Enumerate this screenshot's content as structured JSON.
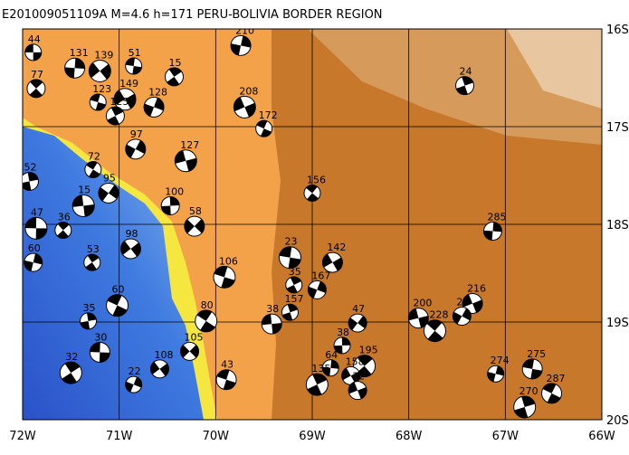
{
  "title": "E201009051109A M=4.6 h=171 PERU-BOLIVIA BORDER REGION",
  "xlim": [
    -72,
    -66
  ],
  "ylim": [
    -20,
    -16
  ],
  "xticks": [
    {
      "value": -72,
      "label": "72W"
    },
    {
      "value": -71,
      "label": "71W"
    },
    {
      "value": -70,
      "label": "70W"
    },
    {
      "value": -69,
      "label": "69W"
    },
    {
      "value": -68,
      "label": "68W"
    },
    {
      "value": -67,
      "label": "67W"
    },
    {
      "value": -66,
      "label": "66W"
    }
  ],
  "yticks": [
    {
      "value": -16,
      "label": "16S"
    },
    {
      "value": -17,
      "label": "17S"
    },
    {
      "value": -18,
      "label": "18S"
    },
    {
      "value": -19,
      "label": "19S"
    },
    {
      "value": -20,
      "label": "20S"
    }
  ],
  "events": [
    {
      "depth": 44,
      "lon": -71.89,
      "lat": -16.24
    },
    {
      "depth": 77,
      "lon": -71.86,
      "lat": -16.61
    },
    {
      "depth": 131,
      "lon": -71.46,
      "lat": -16.4
    },
    {
      "depth": 139,
      "lon": -71.2,
      "lat": -16.43
    },
    {
      "depth": 51,
      "lon": -70.85,
      "lat": -16.38
    },
    {
      "depth": 15,
      "lon": -70.43,
      "lat": -16.49
    },
    {
      "depth": 210,
      "lon": -69.74,
      "lat": -16.17
    },
    {
      "depth": 149,
      "lon": -70.94,
      "lat": -16.72
    },
    {
      "depth": 123,
      "lon": -71.22,
      "lat": -16.75
    },
    {
      "depth": 125,
      "lon": -71.04,
      "lat": -16.89
    },
    {
      "depth": 128,
      "lon": -70.64,
      "lat": -16.8
    },
    {
      "depth": 208,
      "lon": -69.7,
      "lat": -16.8
    },
    {
      "depth": 172,
      "lon": -69.5,
      "lat": -17.02
    },
    {
      "depth": 24,
      "lon": -67.42,
      "lat": -16.58
    },
    {
      "depth": 97,
      "lon": -70.83,
      "lat": -17.23
    },
    {
      "depth": 127,
      "lon": -70.31,
      "lat": -17.35
    },
    {
      "depth": 72,
      "lon": -71.27,
      "lat": -17.44
    },
    {
      "depth": 52,
      "lon": -71.93,
      "lat": -17.56
    },
    {
      "depth": 95,
      "lon": -71.11,
      "lat": -17.68
    },
    {
      "depth": 15,
      "lon": -71.37,
      "lat": -17.81
    },
    {
      "depth": 156,
      "lon": -69.0,
      "lat": -17.68
    },
    {
      "depth": 100,
      "lon": -70.47,
      "lat": -17.81
    },
    {
      "depth": 58,
      "lon": -70.22,
      "lat": -18.02
    },
    {
      "depth": 47,
      "lon": -71.86,
      "lat": -18.04
    },
    {
      "depth": 36,
      "lon": -71.58,
      "lat": -18.06
    },
    {
      "depth": 285,
      "lon": -67.13,
      "lat": -18.07
    },
    {
      "depth": 98,
      "lon": -70.88,
      "lat": -18.25
    },
    {
      "depth": 23,
      "lon": -69.23,
      "lat": -18.34
    },
    {
      "depth": 53,
      "lon": -71.28,
      "lat": -18.39
    },
    {
      "depth": 60,
      "lon": -71.89,
      "lat": -18.39
    },
    {
      "depth": 142,
      "lon": -68.79,
      "lat": -18.39
    },
    {
      "depth": 106,
      "lon": -69.91,
      "lat": -18.54
    },
    {
      "depth": 35,
      "lon": -69.19,
      "lat": -18.62
    },
    {
      "depth": 167,
      "lon": -68.95,
      "lat": -18.67
    },
    {
      "depth": 216,
      "lon": -67.34,
      "lat": -18.81
    },
    {
      "depth": 60,
      "lon": -71.02,
      "lat": -18.83
    },
    {
      "depth": 157,
      "lon": -69.23,
      "lat": -18.9
    },
    {
      "depth": 24,
      "lon": -67.45,
      "lat": -18.94
    },
    {
      "depth": 200,
      "lon": -67.9,
      "lat": -18.96
    },
    {
      "depth": 80,
      "lon": -70.1,
      "lat": -18.99
    },
    {
      "depth": 35,
      "lon": -71.32,
      "lat": -18.99
    },
    {
      "depth": 47,
      "lon": -68.53,
      "lat": -19.01
    },
    {
      "depth": 38,
      "lon": -69.42,
      "lat": -19.02
    },
    {
      "depth": 228,
      "lon": -67.73,
      "lat": -19.09
    },
    {
      "depth": 38,
      "lon": -68.69,
      "lat": -19.24
    },
    {
      "depth": 105,
      "lon": -70.27,
      "lat": -19.3
    },
    {
      "depth": 30,
      "lon": -71.2,
      "lat": -19.31
    },
    {
      "depth": 195,
      "lon": -68.46,
      "lat": -19.45
    },
    {
      "depth": 64,
      "lon": -68.81,
      "lat": -19.47
    },
    {
      "depth": 108,
      "lon": -70.58,
      "lat": -19.48
    },
    {
      "depth": 275,
      "lon": -66.72,
      "lat": -19.48
    },
    {
      "depth": 32,
      "lon": -71.5,
      "lat": -19.52
    },
    {
      "depth": 274,
      "lon": -67.1,
      "lat": -19.53
    },
    {
      "depth": 158,
      "lon": -68.6,
      "lat": -19.55
    },
    {
      "depth": 43,
      "lon": -69.89,
      "lat": -19.59
    },
    {
      "depth": 135,
      "lon": -68.95,
      "lat": -19.64
    },
    {
      "depth": 22,
      "lon": -70.85,
      "lat": -19.64
    },
    {
      "depth": 32,
      "lon": -68.53,
      "lat": -19.7
    },
    {
      "depth": 287,
      "lon": -66.52,
      "lat": -19.73
    },
    {
      "depth": 270,
      "lon": -66.8,
      "lat": -19.87
    }
  ]
}
